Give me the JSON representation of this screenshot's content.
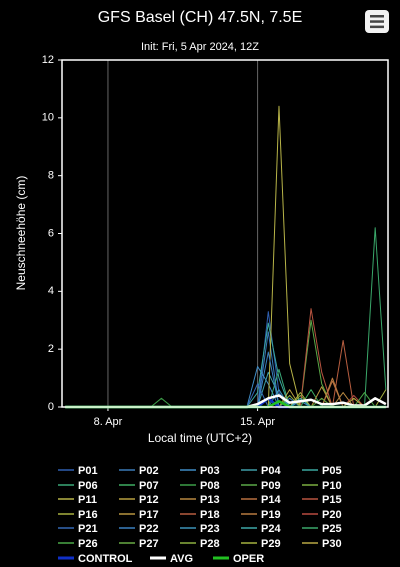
{
  "chart_data": {
    "type": "line",
    "title": "GFS Basel (CH) 47.5N, 7.5E",
    "subtitle": "Init: Fri, 5 Apr 2024, 12Z",
    "x_label": "Local time (UTC+2)",
    "y_label": "Neuschneehöhe (cm)",
    "x": [
      6,
      6.5,
      7,
      7.5,
      8,
      8.5,
      9,
      9.5,
      10,
      10.5,
      11,
      11.5,
      12,
      12.5,
      13,
      13.5,
      14,
      14.5,
      15,
      15.5,
      16,
      16.5,
      17,
      17.5,
      18,
      18.5,
      19,
      19.5,
      20,
      20.5,
      21
    ],
    "xlim": [
      5.85,
      21.1
    ],
    "xticks": [
      {
        "value": 8,
        "label": "8. Apr"
      },
      {
        "value": 15,
        "label": "15. Apr"
      }
    ],
    "ylim": [
      0,
      12
    ],
    "yticks": [
      0,
      2,
      4,
      6,
      8,
      10,
      12
    ],
    "grid": true,
    "series": [
      {
        "name": "P01",
        "color": "#2f5fb0",
        "values": [
          0,
          0,
          0,
          0,
          0,
          0,
          0,
          0,
          0,
          0,
          0,
          0,
          0,
          0,
          0,
          0,
          0,
          0,
          0,
          3.3,
          0.5,
          0,
          0,
          0,
          0,
          0,
          0,
          0,
          0,
          0,
          0
        ]
      },
      {
        "name": "P02",
        "color": "#3a7ab8",
        "values": [
          0,
          0,
          0,
          0,
          0,
          0,
          0,
          0,
          0,
          0,
          0,
          0,
          0,
          0,
          0,
          0,
          0,
          0,
          0,
          2.6,
          0,
          0.3,
          0,
          0,
          0,
          0,
          0,
          0,
          0,
          0,
          0
        ]
      },
      {
        "name": "P03",
        "color": "#3f8cc6",
        "values": [
          0,
          0,
          0,
          0,
          0,
          0,
          0,
          0,
          0,
          0,
          0,
          0,
          0,
          0,
          0,
          0,
          0,
          0,
          1.4,
          0.8,
          0,
          0,
          0.2,
          0,
          0,
          0,
          0,
          0,
          0,
          0,
          0
        ]
      },
      {
        "name": "P04",
        "color": "#3f9ea8",
        "values": [
          0,
          0,
          0,
          0,
          0,
          0,
          0,
          0,
          0,
          0,
          0,
          0,
          0,
          0,
          0,
          0,
          0,
          0,
          0,
          1.2,
          0.4,
          0,
          0,
          0,
          0,
          0,
          0,
          0,
          0,
          0,
          0
        ]
      },
      {
        "name": "P05",
        "color": "#3aa8a0",
        "values": [
          0,
          0,
          0,
          0,
          0,
          0,
          0,
          0,
          0,
          0,
          0,
          0,
          0,
          0,
          0,
          0,
          0,
          0,
          0.5,
          2.9,
          1.0,
          0,
          0,
          0,
          0,
          0,
          0,
          0,
          0,
          0,
          0
        ]
      },
      {
        "name": "P06",
        "color": "#3aa878",
        "values": [
          0,
          0,
          0,
          0,
          0,
          0,
          0,
          0,
          0,
          0,
          0,
          0,
          0,
          0,
          0,
          0,
          0,
          0,
          0,
          0,
          1.3,
          0,
          0,
          0,
          0,
          0,
          0,
          0,
          0,
          0,
          0
        ]
      },
      {
        "name": "P07",
        "color": "#3fae62",
        "values": [
          0,
          0,
          0,
          0,
          0,
          0,
          0,
          0,
          0,
          0,
          0,
          0,
          0,
          0,
          0,
          0,
          0,
          0,
          0,
          0,
          0,
          0,
          0,
          0.6,
          0,
          0,
          0,
          0,
          0,
          0,
          0
        ]
      },
      {
        "name": "P08",
        "color": "#3c9e48",
        "values": [
          0,
          0,
          0,
          0,
          0,
          0,
          0,
          0,
          0,
          0.3,
          0,
          0,
          0,
          0,
          0,
          0,
          0,
          0,
          0,
          0,
          0,
          0,
          0,
          0,
          0,
          0,
          0,
          0,
          0,
          0,
          0
        ]
      },
      {
        "name": "P09",
        "color": "#5aa848",
        "values": [
          0,
          0,
          0,
          0,
          0,
          0,
          0,
          0,
          0,
          0,
          0,
          0,
          0,
          0,
          0,
          0,
          0,
          0,
          0,
          0,
          0,
          0,
          0,
          3.0,
          0.8,
          0,
          0,
          0,
          0,
          0,
          0
        ]
      },
      {
        "name": "P10",
        "color": "#7aae40",
        "values": [
          0,
          0,
          0,
          0,
          0,
          0,
          0,
          0,
          0,
          0,
          0,
          0,
          0,
          0,
          0,
          0,
          0,
          0,
          0,
          0,
          0,
          0,
          0.4,
          0,
          0,
          0,
          0,
          0,
          0,
          0,
          0
        ]
      },
      {
        "name": "P11",
        "color": "#b8b448",
        "values": [
          0,
          0,
          0,
          0,
          0,
          0,
          0,
          0,
          0,
          0,
          0,
          0,
          0,
          0,
          0,
          0,
          0,
          0,
          0,
          0,
          10.4,
          1.5,
          0,
          0,
          0,
          0,
          0,
          0,
          0,
          0,
          0
        ]
      },
      {
        "name": "P12",
        "color": "#b8a040",
        "values": [
          0,
          0,
          0,
          0,
          0,
          0,
          0,
          0,
          0,
          0,
          0,
          0,
          0,
          0,
          0,
          0,
          0,
          0,
          0,
          0,
          0,
          0.6,
          0,
          0,
          0,
          0,
          0,
          0,
          0,
          0,
          0
        ]
      },
      {
        "name": "P13",
        "color": "#b88840",
        "values": [
          0,
          0,
          0,
          0,
          0,
          0,
          0,
          0,
          0,
          0,
          0,
          0,
          0,
          0,
          0,
          0,
          0,
          0,
          0,
          0,
          0,
          0,
          0,
          0,
          0,
          0,
          0.5,
          0,
          0,
          0,
          0
        ]
      },
      {
        "name": "P14",
        "color": "#b87040",
        "values": [
          0,
          0,
          0,
          0,
          0,
          0,
          0,
          0,
          0,
          0,
          0,
          0,
          0,
          0,
          0,
          0,
          0,
          0,
          0,
          0,
          0,
          0,
          0,
          0,
          0,
          0.9,
          0,
          0,
          0,
          0,
          0
        ]
      },
      {
        "name": "P15",
        "color": "#b85440",
        "values": [
          0,
          0,
          0,
          0,
          0,
          0,
          0,
          0,
          0,
          0,
          0,
          0,
          0,
          0,
          0,
          0,
          0,
          0,
          0,
          0,
          0,
          0,
          0,
          3.4,
          1.2,
          0,
          0,
          0,
          0,
          0,
          0
        ]
      },
      {
        "name": "P16",
        "color": "#a8b040",
        "values": [
          0,
          0,
          0,
          0,
          0,
          0,
          0,
          0,
          0,
          0,
          0,
          0,
          0,
          0,
          0,
          0,
          0,
          0,
          0,
          0,
          0,
          0,
          0.5,
          0,
          0,
          0,
          0,
          0,
          0,
          0,
          0
        ]
      },
      {
        "name": "P17",
        "color": "#b89640",
        "values": [
          0,
          0,
          0,
          0,
          0,
          0,
          0,
          0,
          0,
          0,
          0,
          0,
          0,
          0,
          0,
          0,
          0,
          0,
          0,
          0,
          0,
          0,
          0,
          0,
          0.7,
          0,
          0,
          0,
          0,
          0,
          0
        ]
      },
      {
        "name": "P18",
        "color": "#b85e40",
        "values": [
          0,
          0,
          0,
          0,
          0,
          0,
          0,
          0,
          0,
          0,
          0,
          0,
          0,
          0,
          0,
          0,
          0,
          0,
          0,
          0,
          0,
          0,
          0,
          0,
          0,
          0,
          2.3,
          0,
          0,
          0,
          0
        ]
      },
      {
        "name": "P19",
        "color": "#b87a40",
        "values": [
          0,
          0,
          0,
          0,
          0,
          0,
          0,
          0,
          0,
          0,
          0,
          0,
          0,
          0,
          0,
          0,
          0,
          0,
          0,
          0,
          0,
          0,
          0,
          0,
          0,
          1.0,
          0,
          0,
          0,
          0,
          0
        ]
      },
      {
        "name": "P20",
        "color": "#b84a40",
        "values": [
          0,
          0,
          0,
          0,
          0,
          0,
          0,
          0,
          0,
          0,
          0,
          0,
          0,
          0,
          0,
          0,
          0,
          0,
          0,
          0,
          0,
          0,
          0,
          0,
          0,
          0,
          0,
          0.4,
          0,
          0,
          0
        ]
      },
      {
        "name": "P21",
        "color": "#3468b4",
        "values": [
          0,
          0,
          0,
          0,
          0,
          0,
          0,
          0,
          0,
          0,
          0,
          0,
          0,
          0,
          0,
          0,
          0,
          0,
          0.8,
          0,
          0,
          0,
          0,
          0,
          0,
          0,
          0,
          0,
          0,
          0,
          0
        ]
      },
      {
        "name": "P22",
        "color": "#3a80c0",
        "values": [
          0,
          0,
          0,
          0,
          0,
          0,
          0,
          0,
          0,
          0,
          0,
          0,
          0,
          0,
          0,
          0,
          0,
          0,
          0,
          1.9,
          0,
          0,
          0,
          0,
          0,
          0,
          0,
          0,
          0,
          0,
          0
        ]
      },
      {
        "name": "P23",
        "color": "#3c92b8",
        "values": [
          0,
          0,
          0,
          0,
          0,
          0,
          0,
          0,
          0,
          0,
          0,
          0,
          0,
          0,
          0,
          0,
          0,
          0,
          0,
          0,
          0.6,
          0,
          0,
          0,
          0,
          0,
          0,
          0,
          0,
          0,
          0
        ]
      },
      {
        "name": "P24",
        "color": "#3ea8a8",
        "values": [
          0,
          0,
          0,
          0,
          0,
          0,
          0,
          0,
          0,
          0,
          0,
          0,
          0,
          0,
          0,
          0,
          0,
          0,
          0,
          0,
          0,
          0,
          0.3,
          0,
          0,
          0,
          0,
          0,
          0,
          0,
          0
        ]
      },
      {
        "name": "P25",
        "color": "#3aa86a",
        "values": [
          0,
          0,
          0,
          0,
          0,
          0,
          0,
          0,
          0,
          0,
          0,
          0,
          0,
          0,
          0,
          0,
          0,
          0,
          0,
          0,
          0,
          0,
          0,
          0,
          0,
          0,
          0,
          0,
          0,
          6.2,
          0.6
        ]
      },
      {
        "name": "P26",
        "color": "#4aa848",
        "values": [
          0,
          0,
          0,
          0,
          0,
          0,
          0,
          0,
          0,
          0,
          0,
          0,
          0,
          0,
          0,
          0,
          0,
          0,
          0,
          0,
          0,
          0,
          0,
          0,
          0,
          0,
          0,
          0,
          0.5,
          0,
          0
        ]
      },
      {
        "name": "P27",
        "color": "#68aa44",
        "values": [
          0,
          0,
          0,
          0,
          0,
          0,
          0,
          0,
          0,
          0,
          0,
          0,
          0,
          0,
          0,
          0,
          0,
          0,
          0,
          0,
          0,
          0,
          0,
          0,
          0.3,
          0,
          0,
          0,
          0,
          0,
          0
        ]
      },
      {
        "name": "P28",
        "color": "#8cb040",
        "values": [
          0,
          0,
          0,
          0,
          0,
          0,
          0,
          0,
          0,
          0,
          0,
          0,
          0,
          0,
          0,
          0,
          0,
          0,
          0,
          0,
          0,
          0.4,
          0,
          0,
          0,
          0,
          0,
          0,
          0,
          0,
          0
        ]
      },
      {
        "name": "P29",
        "color": "#a6b240",
        "values": [
          0,
          0,
          0,
          0,
          0,
          0,
          0,
          0,
          0,
          0,
          0,
          0,
          0,
          0,
          0,
          0,
          0,
          0,
          0,
          0,
          0,
          0,
          0,
          0,
          0,
          0,
          0,
          0,
          0,
          0,
          0.6
        ]
      },
      {
        "name": "P30",
        "color": "#b8a844",
        "values": [
          0,
          0,
          0,
          0,
          0,
          0,
          0,
          0,
          0,
          0,
          0,
          0,
          0,
          0,
          0,
          0,
          0,
          0,
          0,
          0,
          0,
          0,
          0,
          0,
          0,
          0,
          0,
          0.3,
          0,
          0,
          0
        ]
      },
      {
        "name": "CONTROL",
        "color": "#1030c8",
        "values": [
          0,
          0,
          0,
          0,
          0,
          0,
          0,
          0,
          0,
          0,
          0,
          0,
          0,
          0,
          0,
          0,
          0,
          0,
          0,
          0.3,
          0,
          0,
          0,
          0,
          0,
          0,
          0,
          0,
          0,
          0,
          0
        ]
      },
      {
        "name": "AVG",
        "color": "#ffffff",
        "values": [
          0,
          0,
          0,
          0,
          0,
          0,
          0,
          0,
          0,
          0,
          0,
          0,
          0,
          0,
          0,
          0,
          0,
          0,
          0.1,
          0.3,
          0.4,
          0.15,
          0.2,
          0.25,
          0.1,
          0.1,
          0.15,
          0.05,
          0.05,
          0.3,
          0.1
        ]
      },
      {
        "name": "OPER",
        "color": "#22c022",
        "values": [
          0,
          0,
          0,
          0,
          0,
          0,
          0,
          0,
          0,
          0,
          0,
          0,
          0,
          0,
          0,
          0,
          0,
          0,
          0,
          0,
          0.2,
          0,
          0,
          0,
          0,
          0,
          0,
          0,
          0,
          0,
          0
        ]
      }
    ]
  }
}
